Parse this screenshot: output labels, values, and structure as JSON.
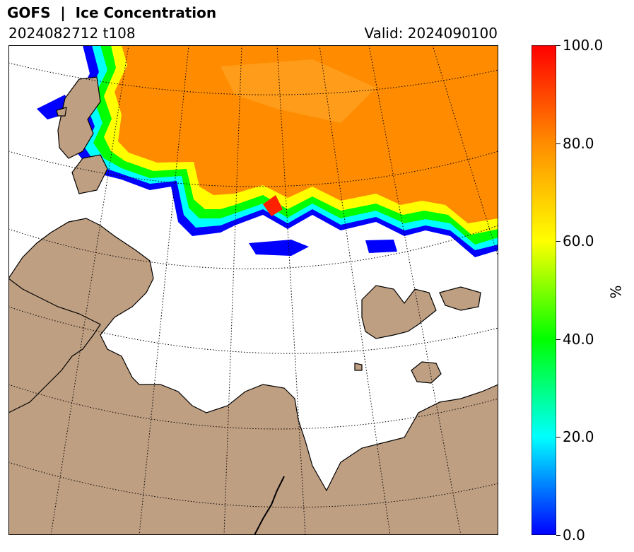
{
  "header": {
    "title": "GOFS  |  Ice Concentration",
    "run": "2024082712 t108",
    "valid": "Valid: 2024090100"
  },
  "colors": {
    "land": "#bf9f82",
    "ocean": "#ffffff",
    "coastline": "#000000",
    "graticule": "#000000"
  },
  "colorbar": {
    "unit": "%",
    "min": 0,
    "max": 100,
    "ticks": [
      "0.0",
      "20.0",
      "40.0",
      "60.0",
      "80.0",
      "100.0"
    ],
    "colormap": [
      "#0000ff",
      "#00ffff",
      "#00ff00",
      "#ffff00",
      "#ff8c00",
      "#ff0000"
    ]
  }
}
